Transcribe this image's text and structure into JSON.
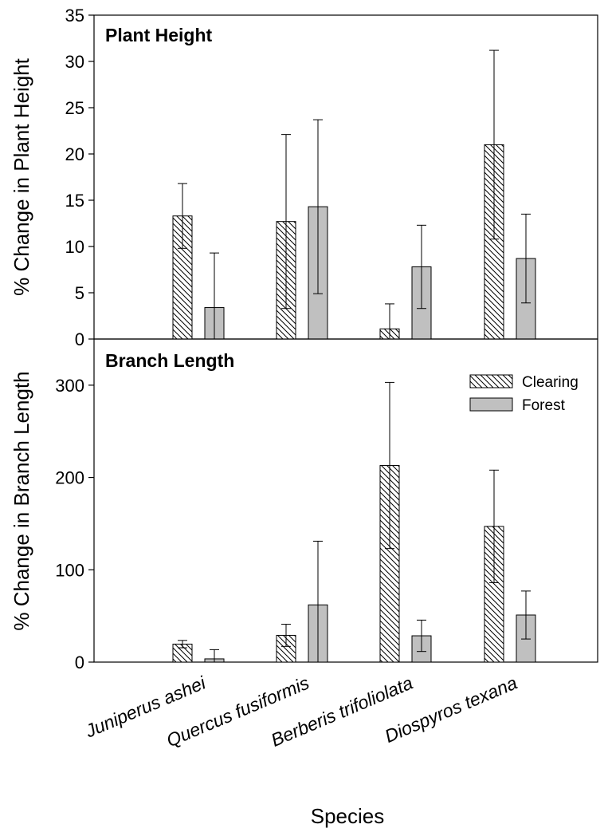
{
  "chart_data": {
    "type": "bar",
    "xlabel": "Species",
    "categories": [
      "Juniperus ashei",
      "Quercus fusiformis",
      "Berberis trifoliolata",
      "Diospyros texana"
    ],
    "legend": {
      "placement": "top-right of lower panel",
      "entries": [
        {
          "name": "Clearing",
          "pattern": "diagonal-hatch"
        },
        {
          "name": "Forest",
          "color": "#c0c0c0"
        }
      ]
    },
    "panels": [
      {
        "title": "Plant Height",
        "ylabel": "% Change in Plant Height",
        "ylim": [
          0,
          35
        ],
        "yticks": [
          0,
          5,
          10,
          15,
          20,
          25,
          30,
          35
        ],
        "series": [
          {
            "name": "Clearing",
            "values": [
              13.3,
              12.7,
              1.1,
              21.0
            ],
            "errors": [
              3.5,
              9.4,
              2.7,
              10.2
            ]
          },
          {
            "name": "Forest",
            "values": [
              3.4,
              14.3,
              7.8,
              8.7
            ],
            "errors": [
              5.9,
              9.4,
              4.5,
              4.8
            ]
          }
        ]
      },
      {
        "title": "Branch Length",
        "ylabel": "% Change in Branch Length",
        "ylim": [
          0,
          350
        ],
        "yticks": [
          0,
          100,
          200,
          300
        ],
        "series": [
          {
            "name": "Clearing",
            "values": [
              19.5,
              29.0,
              213.0,
              147.0
            ],
            "errors": [
              4.0,
              12.0,
              90.0,
              61.0
            ]
          },
          {
            "name": "Forest",
            "values": [
              3.5,
              62.0,
              28.5,
              51.0
            ],
            "errors": [
              10.0,
              69.0,
              17.0,
              26.0
            ]
          }
        ]
      }
    ]
  }
}
